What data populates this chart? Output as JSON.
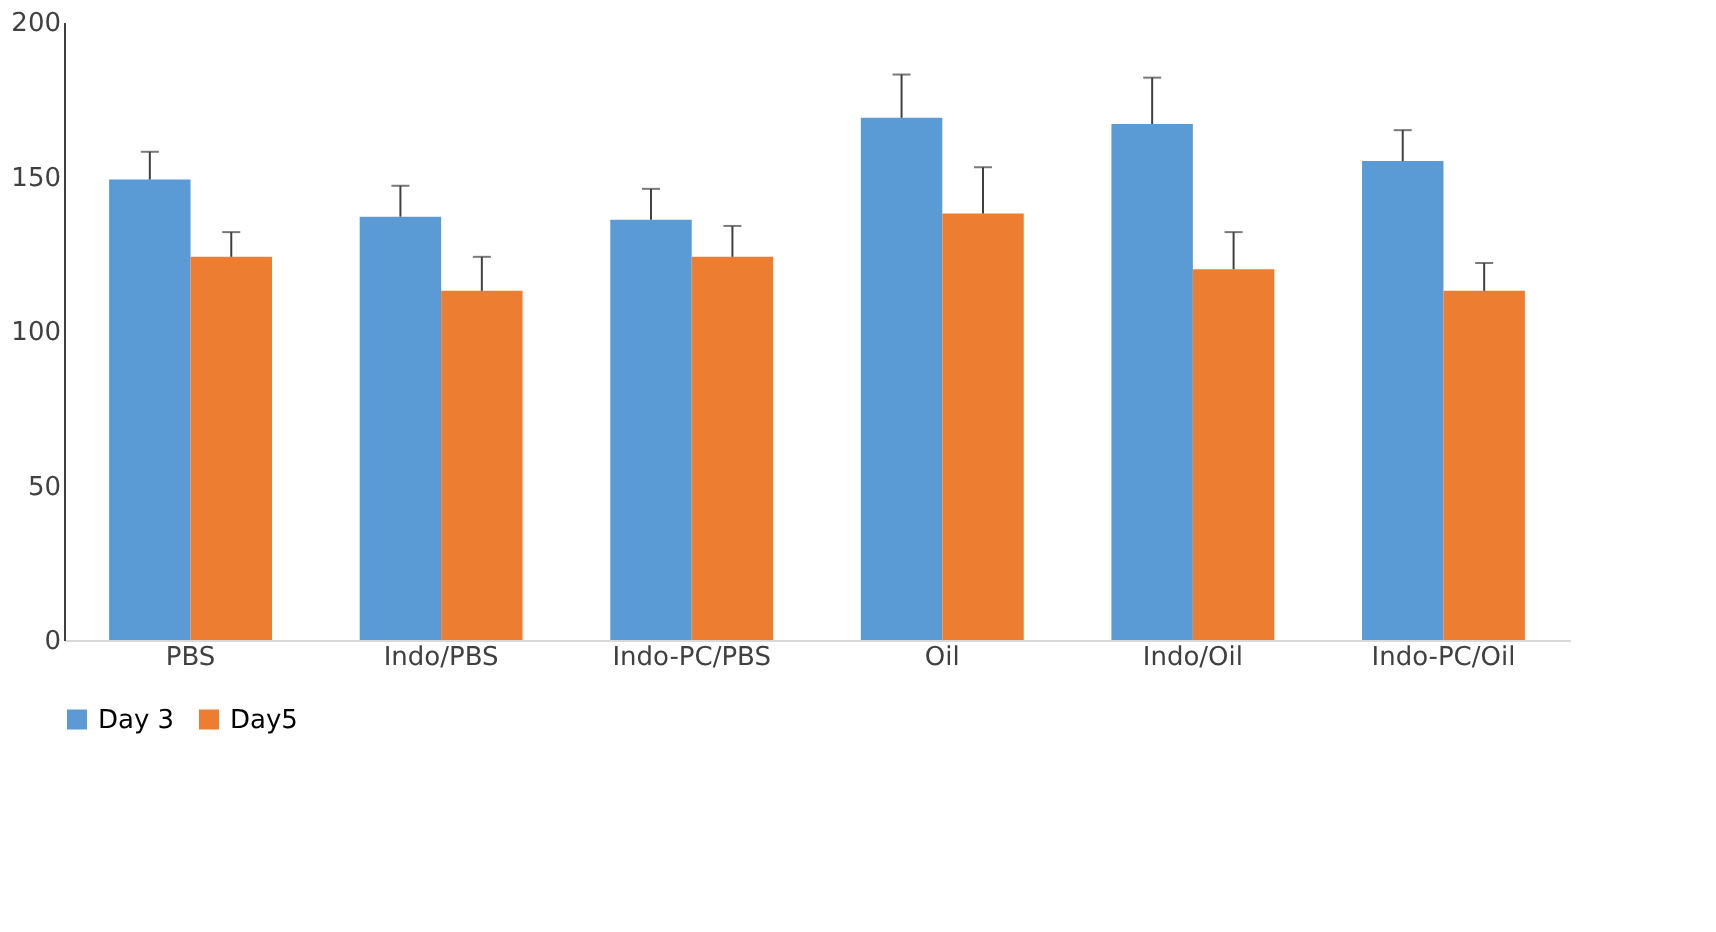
{
  "chart_data": {
    "type": "bar",
    "categories": [
      "PBS",
      "Indo/PBS",
      "Indo-PC/PBS",
      "Oil",
      "Indo/Oil",
      "Indo-PC/Oil"
    ],
    "series": [
      {
        "name": "Day 3",
        "color": "#5b9bd5",
        "values": [
          149,
          137,
          136,
          169,
          167,
          155
        ],
        "errors": [
          [
            149,
            158
          ],
          [
            137,
            147
          ],
          [
            136,
            146
          ],
          [
            169,
            183
          ],
          [
            167,
            182
          ],
          [
            155,
            165
          ]
        ]
      },
      {
        "name": "Day5",
        "color": "#ed7d31",
        "values": [
          124,
          113,
          124,
          138,
          120,
          113
        ],
        "errors": [
          [
            124,
            132
          ],
          [
            113,
            124
          ],
          [
            124,
            134
          ],
          [
            138,
            153
          ],
          [
            120,
            132
          ],
          [
            113,
            122
          ]
        ]
      }
    ],
    "ylim": [
      0,
      200
    ],
    "yticks": [
      0,
      50,
      100,
      150,
      200
    ],
    "grid": false,
    "legend": "bottom"
  }
}
